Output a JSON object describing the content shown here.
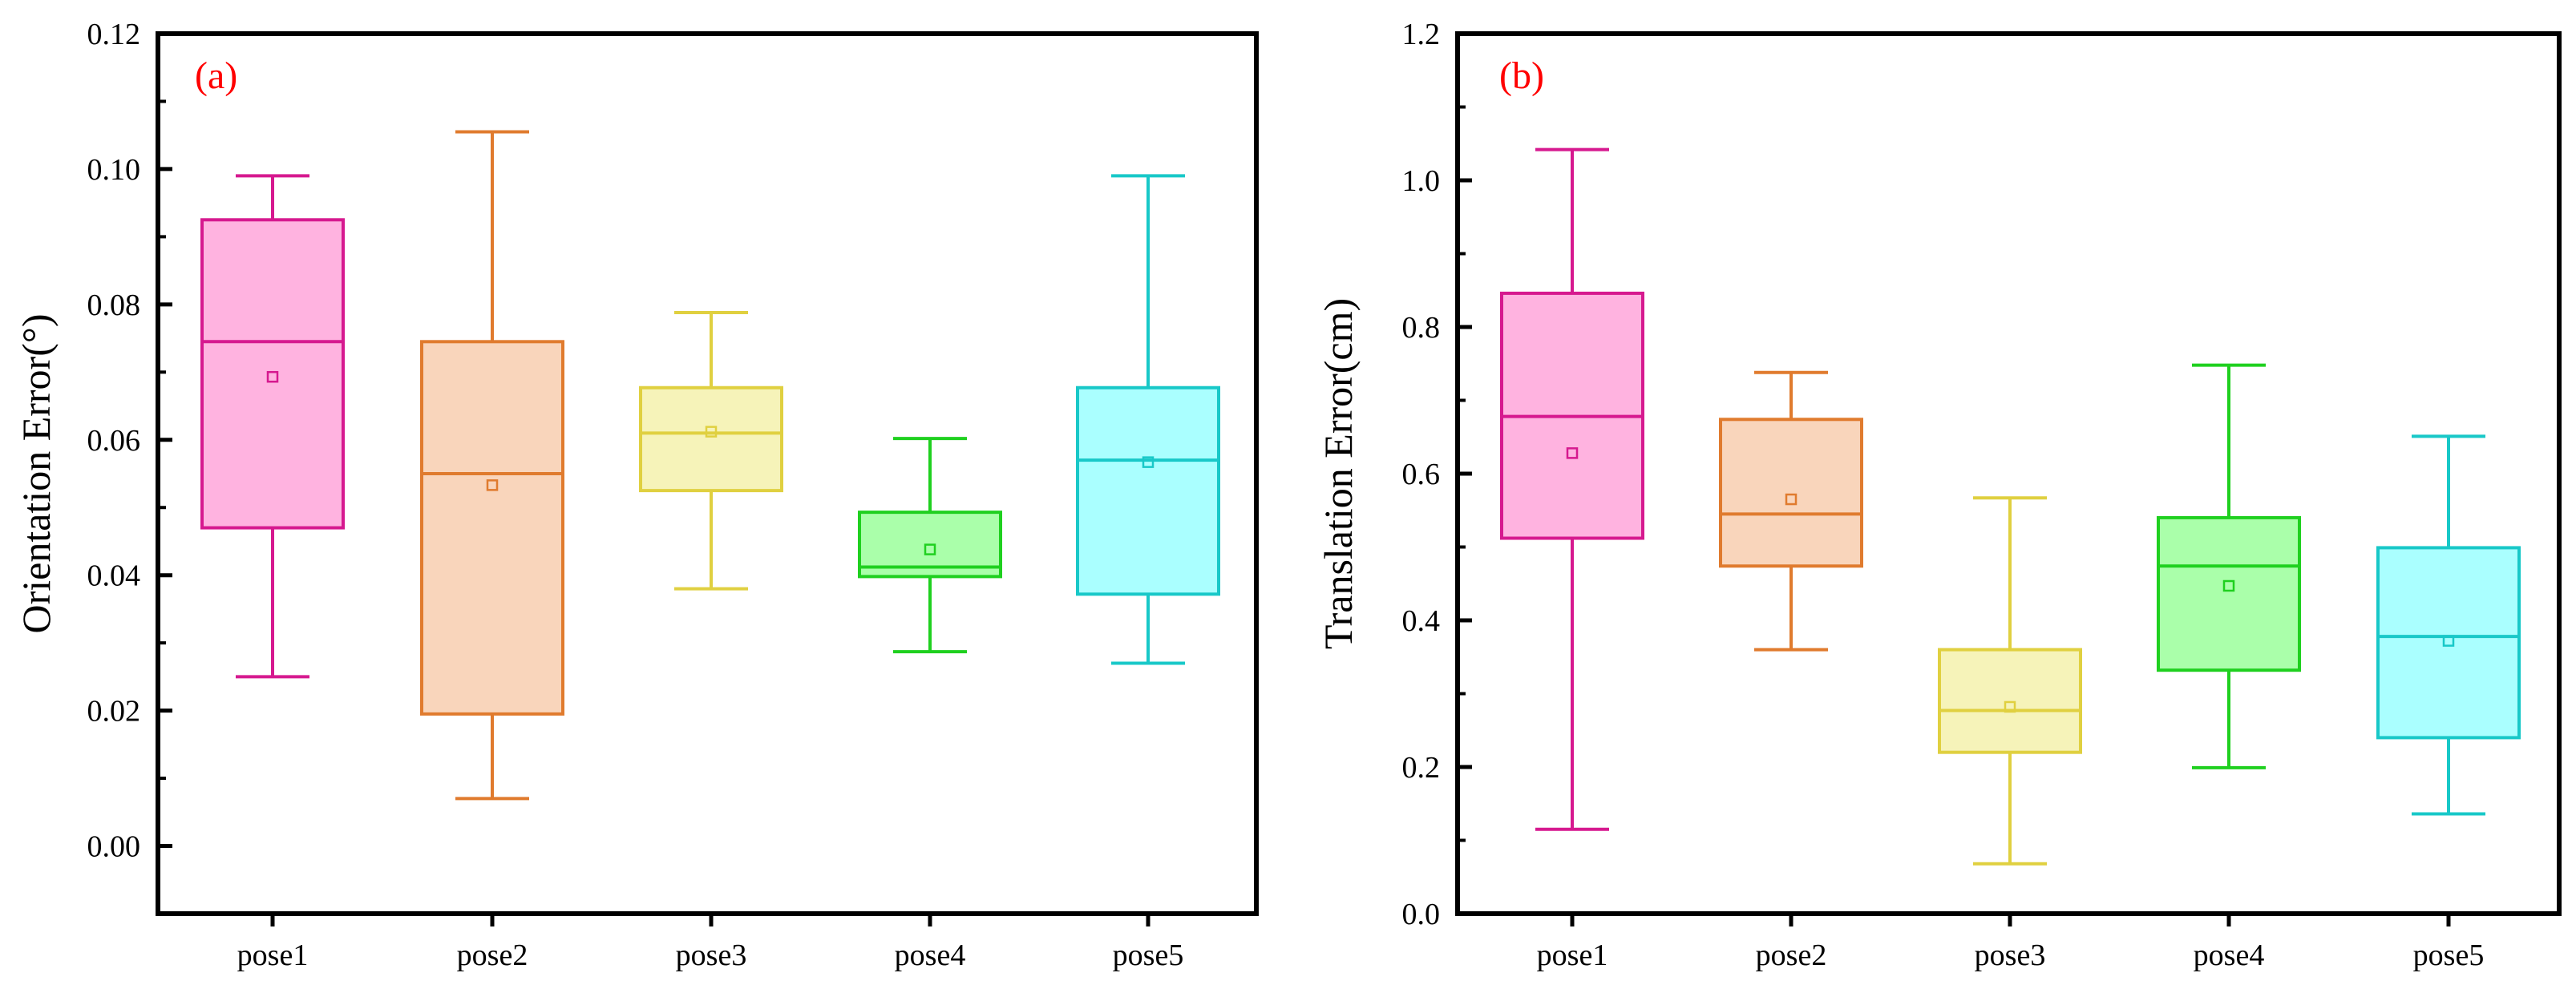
{
  "chart_data": [
    {
      "type": "box",
      "panel_label": "(a)",
      "ylabel": "Orientation Error(°)",
      "xlabel": "",
      "ylim": [
        -0.01,
        0.12
      ],
      "yticks": [
        0.0,
        0.02,
        0.04,
        0.06,
        0.08,
        0.1,
        0.12
      ],
      "ytick_labels": [
        "0.00",
        "0.02",
        "0.04",
        "0.06",
        "0.08",
        "0.10",
        "0.12"
      ],
      "categories": [
        "pose1",
        "pose2",
        "pose3",
        "pose4",
        "pose5"
      ],
      "boxes": [
        {
          "name": "pose1",
          "min": 0.025,
          "q1": 0.047,
          "median": 0.0745,
          "q3": 0.0925,
          "max": 0.099,
          "mean": 0.0693,
          "color": "#d6198f",
          "fill": "#ffb3e0"
        },
        {
          "name": "pose2",
          "min": 0.007,
          "q1": 0.0195,
          "median": 0.055,
          "q3": 0.0745,
          "max": 0.1055,
          "mean": 0.0533,
          "color": "#e07b2e",
          "fill": "#f9d5bb"
        },
        {
          "name": "pose3",
          "min": 0.038,
          "q1": 0.0525,
          "median": 0.061,
          "q3": 0.0677,
          "max": 0.0788,
          "mean": 0.0612,
          "color": "#e0d040",
          "fill": "#f6f3b9"
        },
        {
          "name": "pose4",
          "min": 0.0287,
          "q1": 0.0398,
          "median": 0.0412,
          "q3": 0.0493,
          "max": 0.0602,
          "mean": 0.0438,
          "color": "#1fd01f",
          "fill": "#aaffaa"
        },
        {
          "name": "pose5",
          "min": 0.027,
          "q1": 0.0372,
          "median": 0.057,
          "q3": 0.0677,
          "max": 0.099,
          "mean": 0.0567,
          "color": "#18c8c8",
          "fill": "#aaffff"
        }
      ]
    },
    {
      "type": "box",
      "panel_label": "(b)",
      "ylabel": "Translation Error(cm)",
      "xlabel": "",
      "ylim": [
        0.0,
        1.2
      ],
      "yticks": [
        0.0,
        0.2,
        0.4,
        0.6,
        0.8,
        1.0,
        1.2
      ],
      "ytick_labels": [
        "0.0",
        "0.2",
        "0.4",
        "0.6",
        "0.8",
        "1.0",
        "1.2"
      ],
      "categories": [
        "pose1",
        "pose2",
        "pose3",
        "pose4",
        "pose5"
      ],
      "boxes": [
        {
          "name": "pose1",
          "min": 0.115,
          "q1": 0.512,
          "median": 0.678,
          "q3": 0.846,
          "max": 1.042,
          "mean": 0.628,
          "color": "#d6198f",
          "fill": "#ffb3e0"
        },
        {
          "name": "pose2",
          "min": 0.36,
          "q1": 0.474,
          "median": 0.545,
          "q3": 0.674,
          "max": 0.738,
          "mean": 0.565,
          "color": "#e07b2e",
          "fill": "#f9d5bb"
        },
        {
          "name": "pose3",
          "min": 0.068,
          "q1": 0.22,
          "median": 0.277,
          "q3": 0.36,
          "max": 0.567,
          "mean": 0.282,
          "color": "#e0d040",
          "fill": "#f6f3b9"
        },
        {
          "name": "pose4",
          "min": 0.199,
          "q1": 0.332,
          "median": 0.474,
          "q3": 0.54,
          "max": 0.748,
          "mean": 0.447,
          "color": "#1fd01f",
          "fill": "#aaffaa"
        },
        {
          "name": "pose5",
          "min": 0.136,
          "q1": 0.24,
          "median": 0.378,
          "q3": 0.499,
          "max": 0.651,
          "mean": 0.372,
          "color": "#18c8c8",
          "fill": "#aaffff"
        }
      ]
    }
  ]
}
